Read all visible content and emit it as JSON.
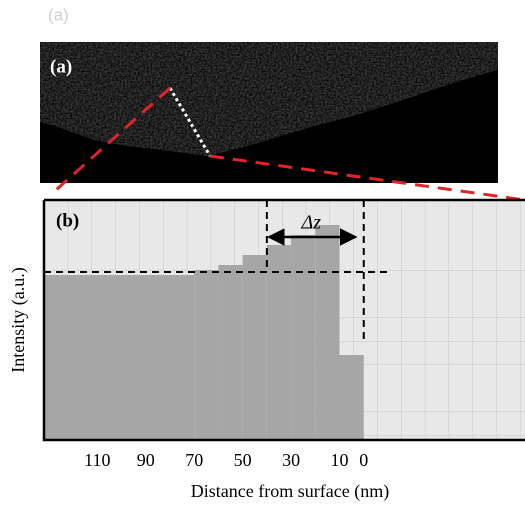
{
  "panel_a": {
    "caption": "(a)",
    "label": "(a)"
  },
  "chart_data": {
    "type": "histogram",
    "panel_label": "(b)",
    "delta_label": "Δz",
    "xlabel": "Distance from surface (nm)",
    "ylabel": "Intensity (a.u.)",
    "bins": [
      132,
      70,
      60,
      50,
      40,
      30,
      20,
      10,
      0
    ],
    "values": [
      16.5,
      17,
      17.5,
      18.5,
      19.5,
      20.5,
      21.5,
      8.5
    ],
    "color": "#a6a6a6",
    "xlim": [
      132,
      -64.5
    ],
    "ylim": [
      0,
      24
    ],
    "xticks": [
      110,
      90,
      70,
      50,
      30,
      10,
      0
    ],
    "hline": 16.8,
    "vlines": [
      40,
      0
    ]
  }
}
